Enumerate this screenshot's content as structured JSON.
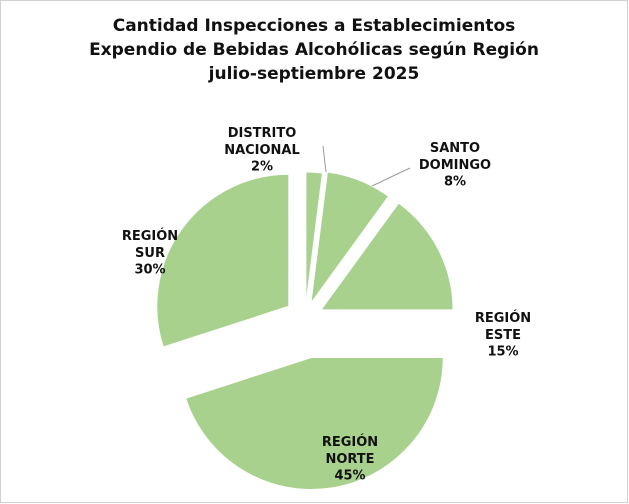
{
  "chart_data": {
    "type": "pie",
    "title": [
      "Cantidad Inspecciones a Establecimientos",
      "Expendio de Bebidas Alcohólicas según Región",
      "julio-septiembre 2025"
    ],
    "categories": [
      "DISTRITO NACIONAL",
      "SANTO DOMINGO",
      "REGIÓN ESTE",
      "REGIÓN NORTE",
      "REGIÓN SUR"
    ],
    "values": [
      2,
      8,
      15,
      45,
      30
    ],
    "value_labels": [
      "2%",
      "8%",
      "15%",
      "45%",
      "30%"
    ],
    "color": "#a9d18e"
  }
}
